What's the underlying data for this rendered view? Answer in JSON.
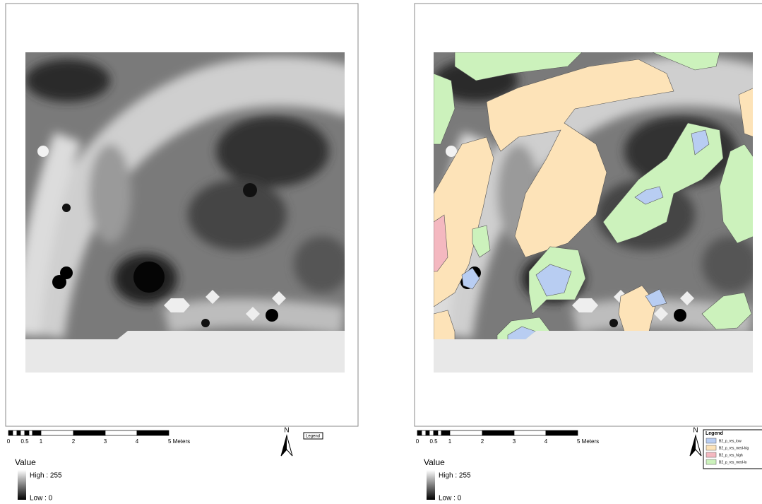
{
  "panels": [
    {
      "scale_bar": {
        "labels": [
          "0",
          "0.5",
          "1",
          "2",
          "3",
          "4",
          "5 Meters"
        ]
      },
      "north": "N",
      "legend_title": "Legend",
      "value_legend": {
        "title": "Value",
        "high": "High : 255",
        "low": "Low : 0"
      }
    },
    {
      "scale_bar": {
        "labels": [
          "0",
          "0.5",
          "1",
          "2",
          "3",
          "4",
          "5 Meters"
        ]
      },
      "north": "N",
      "legend_title": "Legend",
      "legend_entries": [
        "B2_p_res_low",
        "B2_p_res_med-hig",
        "B2_p_res_high",
        "B2_p_res_med-lo"
      ],
      "value_legend": {
        "title": "Value",
        "high": "High : 255",
        "low": "Low : 0"
      }
    }
  ]
}
